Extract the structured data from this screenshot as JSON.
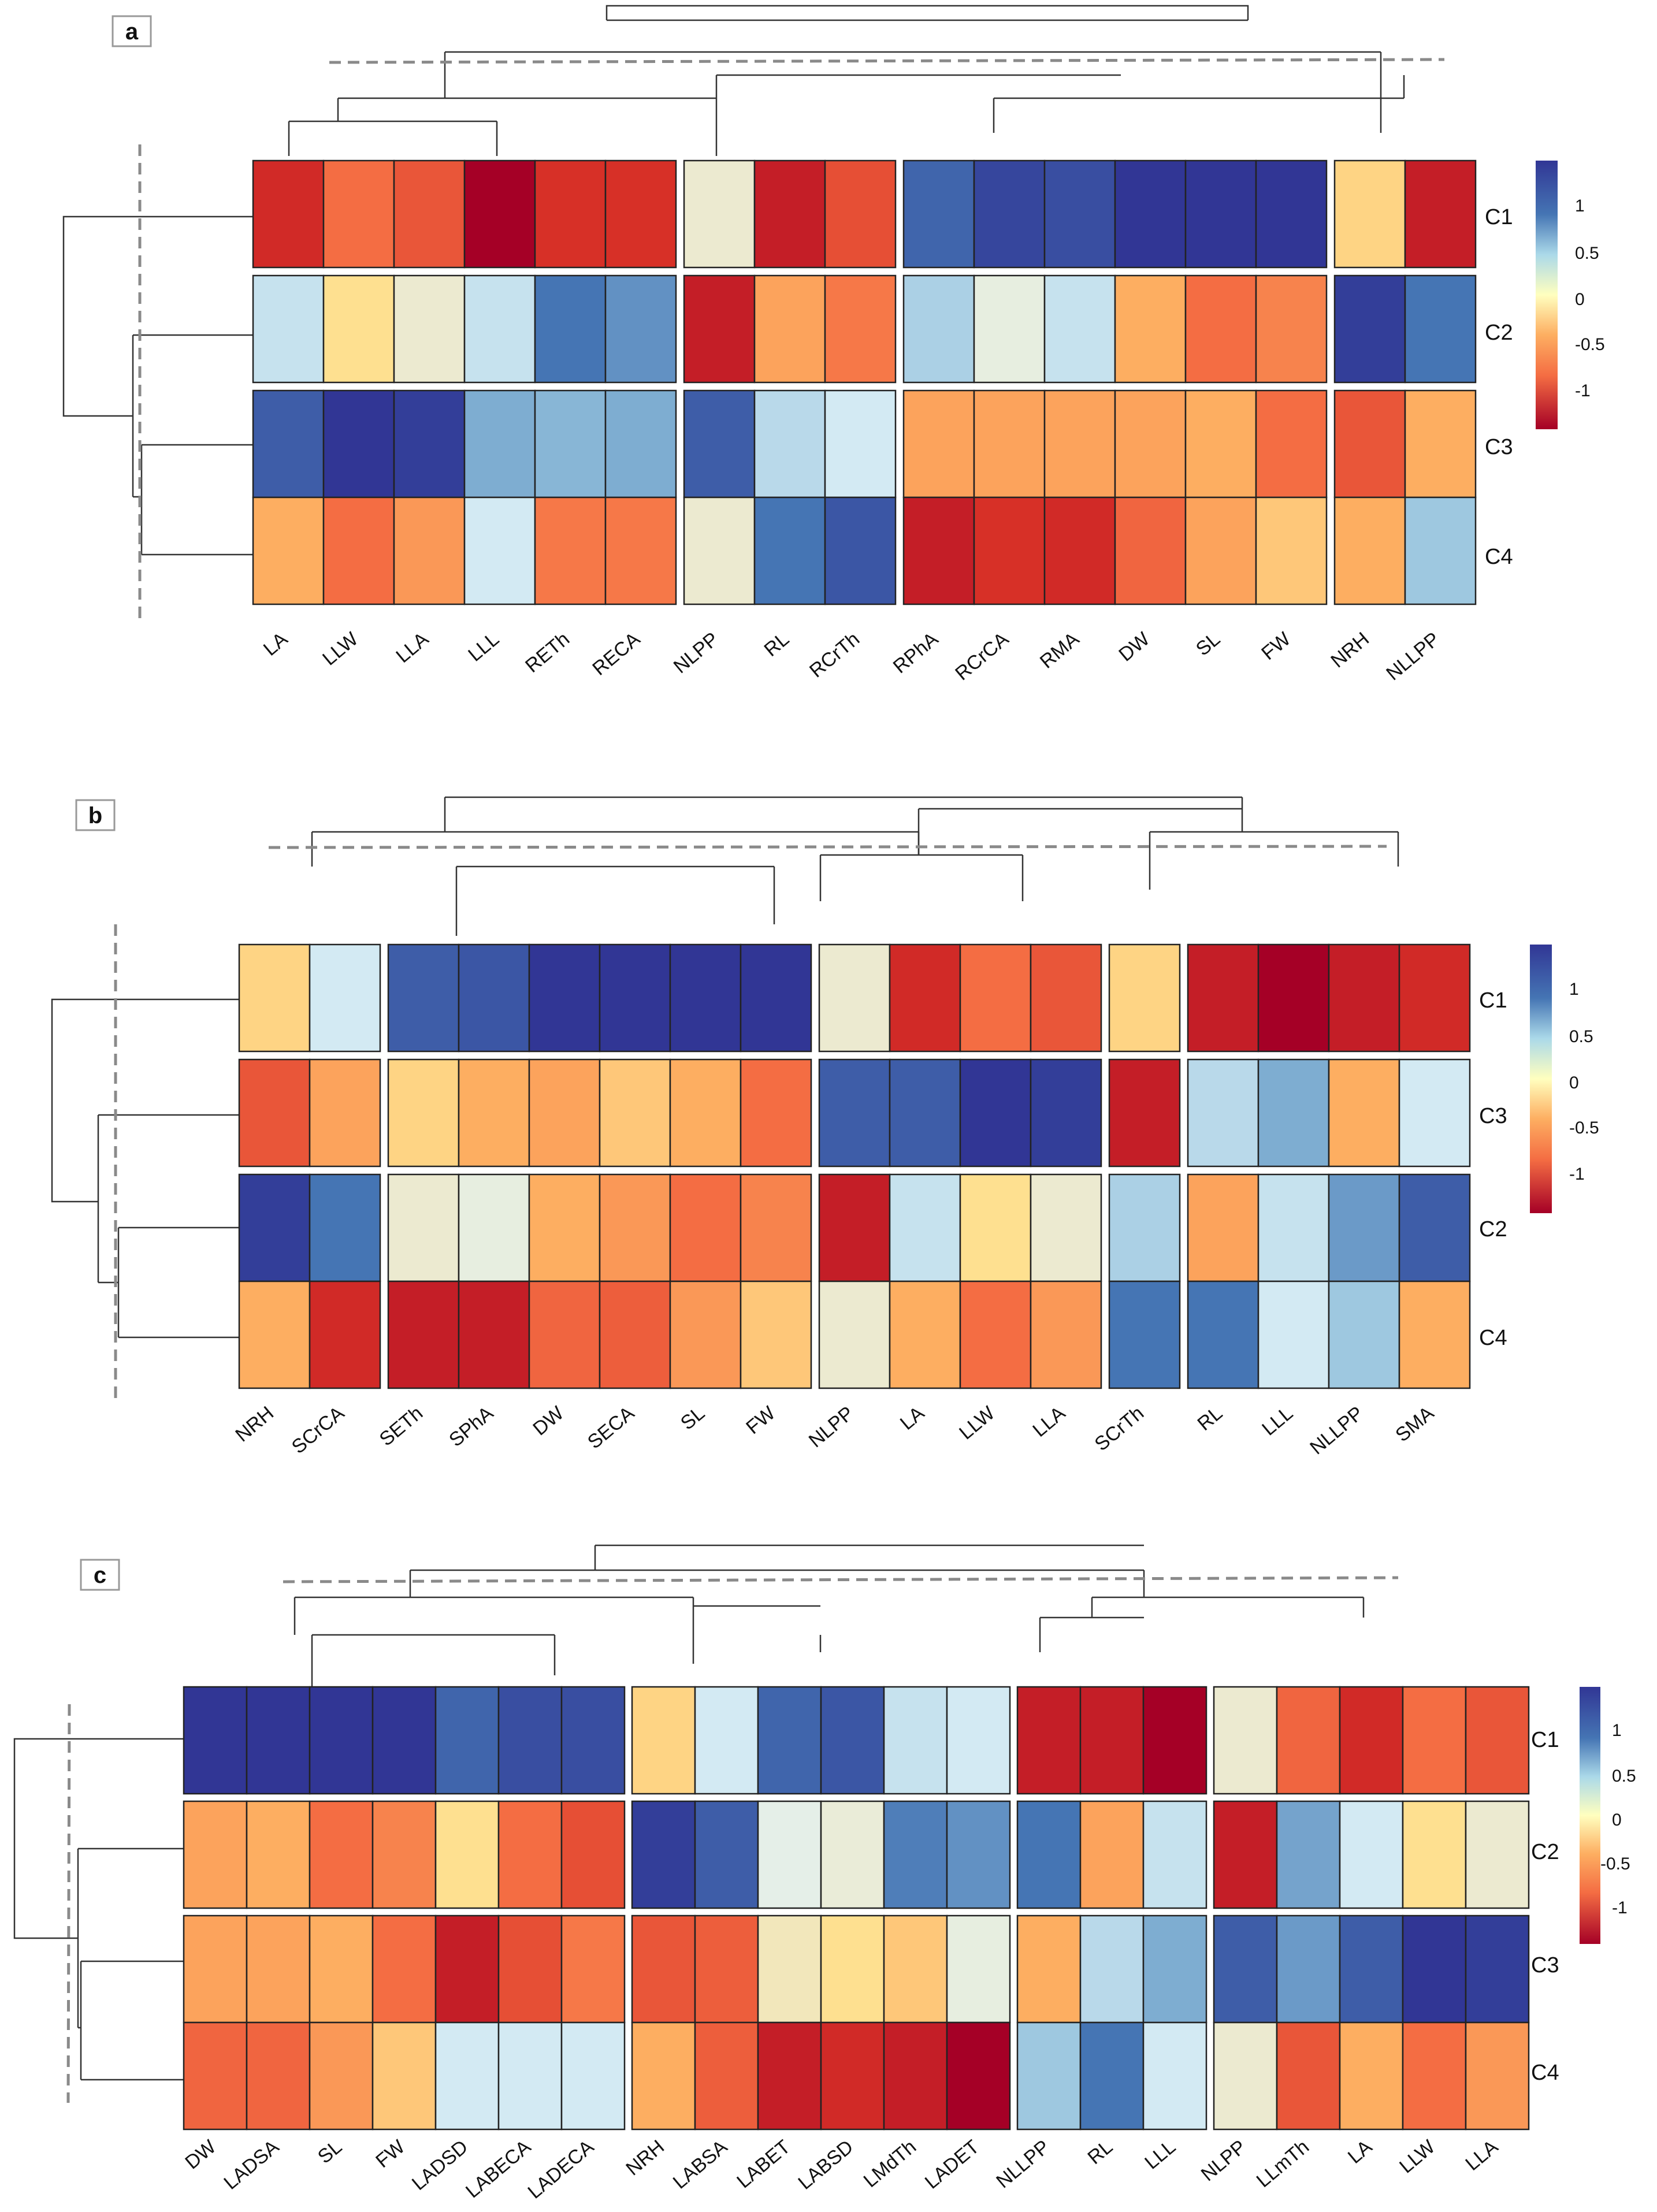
{
  "figure": {
    "panels": [
      "a",
      "b",
      "c"
    ]
  },
  "chart_data": [
    {
      "type": "heatmap",
      "panel_label": "a",
      "columns": [
        "LA",
        "LLW",
        "LLA",
        "LLL",
        "RETh",
        "RECA",
        "NLPP",
        "RL",
        "RCrTh",
        "RPhA",
        "RCrCA",
        "RMA",
        "DW",
        "SL",
        "FW",
        "NRH",
        "NLLPP"
      ],
      "column_groups": [
        6,
        3,
        6,
        2
      ],
      "rows": [
        "C1",
        "C2",
        "C3",
        "C4"
      ],
      "row_groups": [
        1,
        1,
        2
      ],
      "values": [
        [
          -1.05,
          -0.6,
          -0.75,
          -1.4,
          -1.0,
          -1.0,
          0.05,
          -1.15,
          -0.8,
          1.1,
          1.3,
          1.25,
          1.4,
          1.4,
          1.4,
          -0.15,
          -1.15
        ],
        [
          0.4,
          -0.1,
          0.05,
          0.4,
          1.0,
          0.85,
          -1.15,
          -0.35,
          -0.55,
          0.5,
          0.15,
          0.4,
          -0.3,
          -0.6,
          -0.5,
          1.35,
          1.0
        ],
        [
          1.15,
          1.4,
          1.35,
          0.7,
          0.65,
          0.7,
          1.15,
          0.45,
          0.35,
          -0.35,
          -0.35,
          -0.35,
          -0.35,
          -0.3,
          -0.6,
          -0.75,
          -0.3
        ],
        [
          -0.3,
          -0.6,
          -0.4,
          0.35,
          -0.55,
          -0.55,
          0.05,
          1.0,
          1.2,
          -1.15,
          -1.0,
          -1.05,
          -0.65,
          -0.35,
          -0.2,
          -0.3,
          0.55
        ]
      ],
      "legend": {
        "ticks": [
          1,
          0.5,
          0,
          -0.5,
          -1
        ],
        "min": -1.4,
        "max": 1.4
      }
    },
    {
      "type": "heatmap",
      "panel_label": "b",
      "columns": [
        "NRH",
        "SCrCA",
        "SETh",
        "SPhA",
        "DW",
        "SECA",
        "SL",
        "FW",
        "NLPP",
        "LA",
        "LLW",
        "LLA",
        "SCrTh",
        "RL",
        "LLL",
        "NLLPP",
        "SMA"
      ],
      "column_groups": [
        2,
        6,
        4,
        1,
        4
      ],
      "rows": [
        "C1",
        "C3",
        "C2",
        "C4"
      ],
      "row_groups": [
        1,
        1,
        2
      ],
      "values": [
        [
          -0.15,
          0.35,
          1.15,
          1.2,
          1.4,
          1.4,
          1.4,
          1.4,
          0.05,
          -1.05,
          -0.6,
          -0.75,
          -0.15,
          -1.15,
          -1.4,
          -1.15,
          -1.05
        ],
        [
          -0.75,
          -0.35,
          -0.15,
          -0.3,
          -0.35,
          -0.2,
          -0.3,
          -0.6,
          1.15,
          1.15,
          1.4,
          1.35,
          -1.15,
          0.45,
          0.7,
          -0.3,
          0.35
        ],
        [
          1.35,
          1.0,
          0.05,
          0.15,
          -0.3,
          -0.4,
          -0.6,
          -0.5,
          -1.15,
          0.4,
          -0.1,
          0.05,
          0.5,
          -0.35,
          0.4,
          0.8,
          1.15
        ],
        [
          -0.3,
          -1.05,
          -1.15,
          -1.15,
          -0.65,
          -0.7,
          -0.4,
          -0.2,
          0.05,
          -0.3,
          -0.6,
          -0.4,
          1.0,
          1.0,
          0.35,
          0.55,
          -0.3
        ]
      ],
      "legend": {
        "ticks": [
          1,
          0.5,
          0,
          -0.5,
          -1
        ],
        "min": -1.4,
        "max": 1.4
      }
    },
    {
      "type": "heatmap",
      "panel_label": "c",
      "columns": [
        "DW",
        "LADSA",
        "SL",
        "FW",
        "LADSD",
        "LABECA",
        "LADECA",
        "NRH",
        "LABSA",
        "LABET",
        "LABSD",
        "LMdTh",
        "LADET",
        "NLLPP",
        "RL",
        "LLL",
        "NLPP",
        "LLmTh",
        "LA",
        "LLW",
        "LLA"
      ],
      "column_groups": [
        7,
        6,
        3,
        5
      ],
      "rows": [
        "C1",
        "C2",
        "C3",
        "C4"
      ],
      "row_groups": [
        1,
        1,
        2
      ],
      "values": [
        [
          1.4,
          1.4,
          1.4,
          1.4,
          1.1,
          1.25,
          1.25,
          -0.15,
          0.35,
          1.1,
          1.2,
          0.4,
          0.35,
          -1.15,
          -1.15,
          -1.4,
          0.05,
          -0.65,
          -1.05,
          -0.6,
          -0.75
        ],
        [
          -0.35,
          -0.3,
          -0.6,
          -0.5,
          -0.1,
          -0.6,
          -0.8,
          1.35,
          1.15,
          0.2,
          0.1,
          0.95,
          0.85,
          1.0,
          -0.35,
          0.4,
          -1.15,
          0.75,
          0.35,
          -0.1,
          0.05
        ],
        [
          -0.35,
          -0.35,
          -0.3,
          -0.6,
          -1.15,
          -0.8,
          -0.55,
          -0.75,
          -0.7,
          0.0,
          -0.1,
          -0.2,
          0.15,
          -0.3,
          0.45,
          0.7,
          1.15,
          0.8,
          1.15,
          1.4,
          1.35
        ],
        [
          -0.65,
          -0.65,
          -0.4,
          -0.2,
          0.35,
          0.35,
          0.35,
          -0.3,
          -0.7,
          -1.15,
          -1.05,
          -1.15,
          -1.4,
          0.55,
          1.0,
          0.35,
          0.05,
          -0.75,
          -0.3,
          -0.6,
          -0.4
        ]
      ],
      "legend": {
        "ticks": [
          1,
          0.5,
          0,
          -0.5,
          -1
        ],
        "min": -1.4,
        "max": 1.4
      }
    }
  ]
}
